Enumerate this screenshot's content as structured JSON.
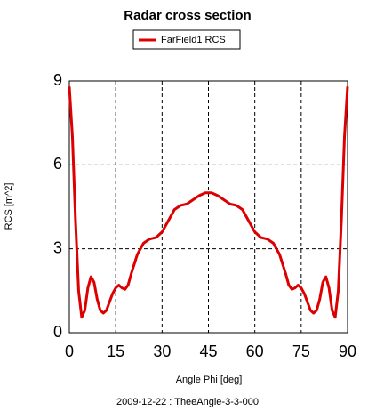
{
  "chart_data": {
    "type": "line",
    "title": "Radar cross section",
    "xlabel": "Angle Phi [deg]",
    "ylabel": "RCS [m^2]",
    "footer": "2009-12-22 : TheeAngle-3-3-000",
    "xlim": [
      0,
      90
    ],
    "xticks": [
      0,
      15,
      30,
      45,
      60,
      75,
      90
    ],
    "ylim": [
      0,
      9
    ],
    "yticks": [
      0,
      3,
      6,
      9
    ],
    "grid": true,
    "x": [
      0,
      1,
      2,
      3,
      4,
      5,
      6,
      7,
      8,
      9,
      10,
      11,
      12,
      13,
      14,
      15,
      16,
      17,
      18,
      19,
      20,
      22,
      24,
      26,
      28,
      30,
      32,
      34,
      36,
      38,
      40,
      42,
      44,
      45,
      46,
      48,
      50,
      52,
      54,
      56,
      58,
      60,
      62,
      64,
      66,
      68,
      70,
      71,
      72,
      73,
      74,
      75,
      76,
      77,
      78,
      79,
      80,
      81,
      82,
      83,
      84,
      85,
      86,
      87,
      88,
      89,
      90
    ],
    "series": [
      {
        "name": "FarField1 RCS",
        "color": "#dd0000",
        "values": [
          8.8,
          7.0,
          4.0,
          1.5,
          0.55,
          0.8,
          1.6,
          2.0,
          1.8,
          1.2,
          0.8,
          0.7,
          0.8,
          1.1,
          1.4,
          1.6,
          1.7,
          1.6,
          1.55,
          1.7,
          2.1,
          2.8,
          3.2,
          3.35,
          3.4,
          3.6,
          4.0,
          4.4,
          4.55,
          4.6,
          4.75,
          4.9,
          5.0,
          5.0,
          5.0,
          4.9,
          4.75,
          4.6,
          4.55,
          4.4,
          4.0,
          3.6,
          3.4,
          3.35,
          3.2,
          2.8,
          2.1,
          1.7,
          1.55,
          1.6,
          1.7,
          1.6,
          1.4,
          1.1,
          0.8,
          0.7,
          0.8,
          1.2,
          1.8,
          2.0,
          1.6,
          0.8,
          0.55,
          1.5,
          4.0,
          7.0,
          8.8
        ]
      }
    ]
  }
}
